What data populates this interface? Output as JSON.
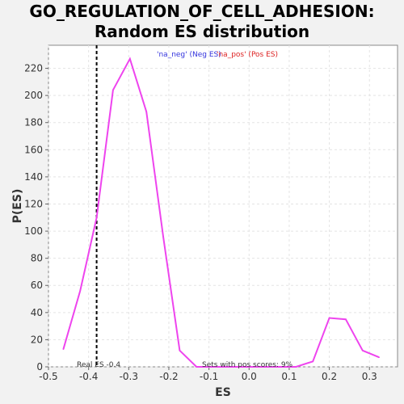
{
  "chart_data": {
    "type": "line",
    "title_line1": "GO_REGULATION_OF_CELL_ADHESION:",
    "title_line2": "Random ES distribution",
    "xlabel": "ES",
    "ylabel": "P(ES)",
    "xlim": [
      -0.5,
      0.37
    ],
    "ylim": [
      0,
      237
    ],
    "x_ticks": [
      "-0.5",
      "-0.4",
      "-0.3",
      "-0.2",
      "-0.1",
      "0.0",
      "0.1",
      "0.2",
      "0.3"
    ],
    "x_tick_values": [
      -0.5,
      -0.4,
      -0.3,
      -0.2,
      -0.1,
      0.0,
      0.1,
      0.2,
      0.3
    ],
    "y_ticks": [
      "0",
      "20",
      "40",
      "60",
      "80",
      "100",
      "120",
      "140",
      "160",
      "180",
      "200",
      "220"
    ],
    "y_tick_values": [
      0,
      20,
      40,
      60,
      80,
      100,
      120,
      140,
      160,
      180,
      200,
      220
    ],
    "grid": true,
    "legend": {
      "neg_label": "'na_neg' (Neg ES)",
      "pos_label": "'na_pos' (Pos ES)",
      "neg_color": "#3333dd",
      "pos_color": "#dd2222"
    },
    "series": [
      {
        "color": "#ee44ee",
        "x": [
          -0.463,
          -0.421,
          -0.38,
          -0.339,
          -0.297,
          -0.256,
          -0.214,
          -0.173,
          -0.131,
          -0.09,
          -0.049,
          -0.007,
          0.034,
          0.076,
          0.117,
          0.159,
          0.2,
          0.241,
          0.283,
          0.324
        ],
        "y": [
          13,
          56,
          110,
          204,
          227,
          188,
          96,
          12,
          0,
          0,
          0,
          0,
          0,
          0,
          0,
          4,
          36,
          35,
          12,
          7
        ]
      }
    ],
    "real_es": {
      "value": -0.38,
      "label": "Real ES -0.4"
    },
    "annotation": "Sets with pos scores: 9%"
  }
}
